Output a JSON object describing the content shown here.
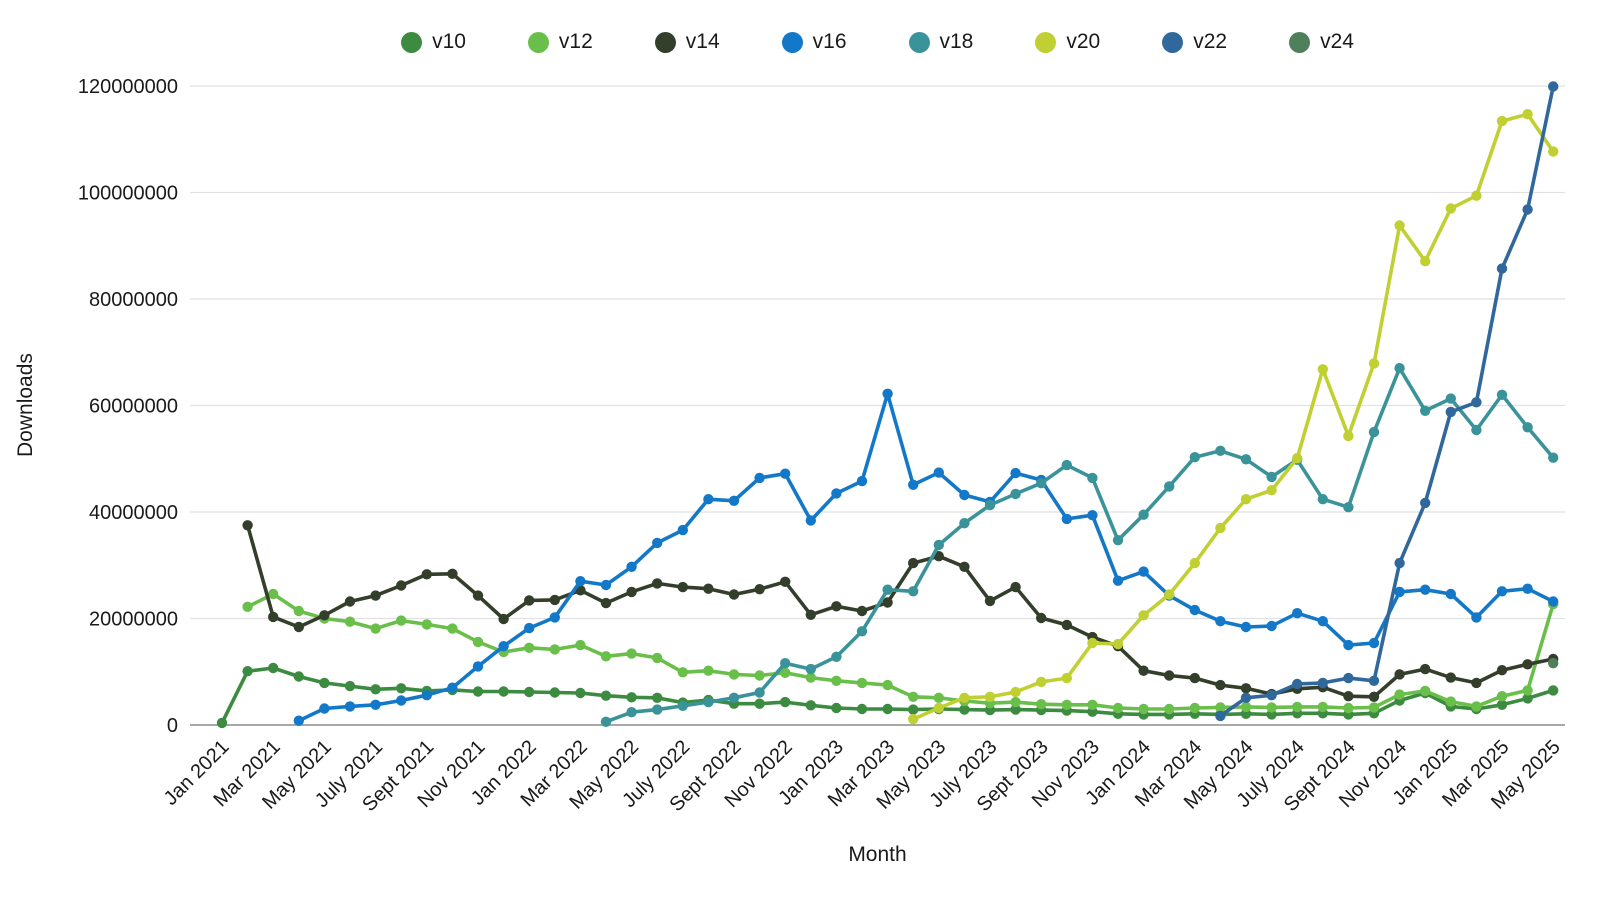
{
  "chart_data": {
    "type": "line",
    "title": "",
    "xlabel": "Month",
    "ylabel": "Downloads",
    "legend_position": "top",
    "grid": "horizontal",
    "ylim": [
      0,
      120000000
    ],
    "value_scale": 1000000,
    "y_ticks": [
      0,
      20000000,
      40000000,
      60000000,
      80000000,
      100000000,
      120000000
    ],
    "x_tick_step": 2,
    "x_tick_labels": [
      "Jan 2021",
      "Mar 2021",
      "May 2021",
      "July 2021",
      "Sept 2021",
      "Nov 2021",
      "Jan 2022",
      "Mar 2022",
      "May 2022",
      "July 2022",
      "Sept 2022",
      "Nov 2022",
      "Jan 2023",
      "Mar 2023",
      "May 2023",
      "July 2023",
      "Sept 2023",
      "Nov 2023",
      "Jan 2024",
      "Mar 2024",
      "May 2024",
      "July 2024",
      "Sept 2024",
      "Nov 2024",
      "Jan 2025",
      "Mar 2025",
      "May 2025"
    ],
    "months": [
      "Jan 2021",
      "Feb 2021",
      "Mar 2021",
      "Apr 2021",
      "May 2021",
      "Jun 2021",
      "July 2021",
      "Aug 2021",
      "Sept 2021",
      "Oct 2021",
      "Nov 2021",
      "Dec 2021",
      "Jan 2022",
      "Feb 2022",
      "Mar 2022",
      "Apr 2022",
      "May 2022",
      "Jun 2022",
      "July 2022",
      "Aug 2022",
      "Sept 2022",
      "Oct 2022",
      "Nov 2022",
      "Dec 2022",
      "Jan 2023",
      "Feb 2023",
      "Mar 2023",
      "Apr 2023",
      "May 2023",
      "Jun 2023",
      "July 2023",
      "Aug 2023",
      "Sept 2023",
      "Oct 2023",
      "Nov 2023",
      "Dec 2023",
      "Jan 2024",
      "Feb 2024",
      "Mar 2024",
      "Apr 2024",
      "May 2024",
      "Jun 2024",
      "July 2024",
      "Aug 2024",
      "Sept 2024",
      "Oct 2024",
      "Nov 2024",
      "Dec 2024",
      "Jan 2025",
      "Feb 2025",
      "Mar 2025",
      "Apr 2025",
      "May 2025"
    ],
    "values_unit": "millions of downloads",
    "series": [
      {
        "name": "v10",
        "color": "#3d8b40",
        "values": [
          0.4,
          10.1,
          10.7,
          9.1,
          7.9,
          7.3,
          6.7,
          6.9,
          6.4,
          6.6,
          6.3,
          6.3,
          6.2,
          6.1,
          6.0,
          5.5,
          5.2,
          5.1,
          4.2,
          4.7,
          4.0,
          4.0,
          4.3,
          3.7,
          3.2,
          3.0,
          3.0,
          2.9,
          3.0,
          2.9,
          2.8,
          2.9,
          2.8,
          2.7,
          2.5,
          2.1,
          2.0,
          2.0,
          2.1,
          2.0,
          2.1,
          2.0,
          2.2,
          2.2,
          2.0,
          2.2,
          4.6,
          6.0,
          3.5,
          3.0,
          3.8,
          5.0,
          6.5
        ]
      },
      {
        "name": "v12",
        "color": "#6abf4b",
        "values": [
          null,
          22.2,
          24.6,
          21.4,
          20.0,
          19.4,
          18.1,
          19.6,
          18.9,
          18.1,
          15.6,
          13.7,
          14.5,
          14.2,
          15.0,
          12.9,
          13.4,
          12.6,
          9.9,
          10.2,
          9.5,
          9.3,
          9.8,
          8.9,
          8.3,
          7.9,
          7.5,
          5.3,
          5.1,
          4.5,
          4.1,
          4.3,
          3.9,
          3.8,
          3.8,
          3.2,
          3.0,
          3.0,
          3.2,
          3.3,
          3.4,
          3.3,
          3.4,
          3.4,
          3.2,
          3.3,
          5.7,
          6.4,
          4.4,
          3.5,
          5.4,
          6.5,
          22.7
        ]
      },
      {
        "name": "v14",
        "color": "#333f2b",
        "values": [
          null,
          37.5,
          20.3,
          18.4,
          20.6,
          23.2,
          24.3,
          26.2,
          28.3,
          28.4,
          24.3,
          19.9,
          23.4,
          23.5,
          25.3,
          22.9,
          25.0,
          26.6,
          25.9,
          25.6,
          24.5,
          25.5,
          26.9,
          20.7,
          22.3,
          21.4,
          23.0,
          30.4,
          31.7,
          29.7,
          23.3,
          25.9,
          20.1,
          18.8,
          16.5,
          14.8,
          10.2,
          9.3,
          8.8,
          7.5,
          6.9,
          5.8,
          6.8,
          7.1,
          5.4,
          5.3,
          9.5,
          10.5,
          8.9,
          7.9,
          10.3,
          11.4,
          12.4
        ]
      },
      {
        "name": "v16",
        "color": "#1478c8",
        "values": [
          null,
          null,
          null,
          0.8,
          3.1,
          3.5,
          3.8,
          4.6,
          5.6,
          7.0,
          11.0,
          14.8,
          18.2,
          20.2,
          27.0,
          26.3,
          29.7,
          34.2,
          36.6,
          42.4,
          42.1,
          46.4,
          47.2,
          38.4,
          43.5,
          45.8,
          62.2,
          45.1,
          47.4,
          43.2,
          41.9,
          47.3,
          46.0,
          38.7,
          39.4,
          27.1,
          28.8,
          24.3,
          21.6,
          19.5,
          18.4,
          18.6,
          21.0,
          19.5,
          15.0,
          15.4,
          25.0,
          25.4,
          24.6,
          20.2,
          25.1,
          25.6,
          23.2
        ]
      },
      {
        "name": "v18",
        "color": "#3b939a",
        "values": [
          null,
          null,
          null,
          null,
          null,
          null,
          null,
          null,
          null,
          null,
          null,
          null,
          null,
          null,
          null,
          0.6,
          2.4,
          2.9,
          3.6,
          4.3,
          5.1,
          6.1,
          11.6,
          10.5,
          12.8,
          17.6,
          25.4,
          25.1,
          33.8,
          37.9,
          41.3,
          43.4,
          45.4,
          48.8,
          46.4,
          34.7,
          39.5,
          44.8,
          50.3,
          51.5,
          49.9,
          46.6,
          49.8,
          42.4,
          40.9,
          55.0,
          67.0,
          59.0,
          61.3,
          55.4,
          62.0,
          55.9,
          50.2
        ]
      },
      {
        "name": "v20",
        "color": "#c0d032",
        "values": [
          null,
          null,
          null,
          null,
          null,
          null,
          null,
          null,
          null,
          null,
          null,
          null,
          null,
          null,
          null,
          null,
          null,
          null,
          null,
          null,
          null,
          null,
          null,
          null,
          null,
          null,
          null,
          1.1,
          3.2,
          5.1,
          5.3,
          6.2,
          8.1,
          8.8,
          15.4,
          15.2,
          20.6,
          24.5,
          30.4,
          37.0,
          42.4,
          44.1,
          50.1,
          66.8,
          54.3,
          67.9,
          93.8,
          87.1,
          97.0,
          99.4,
          113.4,
          114.7,
          107.7
        ]
      },
      {
        "name": "v22",
        "color": "#31689b",
        "values": [
          null,
          null,
          null,
          null,
          null,
          null,
          null,
          null,
          null,
          null,
          null,
          null,
          null,
          null,
          null,
          null,
          null,
          null,
          null,
          null,
          null,
          null,
          null,
          null,
          null,
          null,
          null,
          null,
          null,
          null,
          null,
          null,
          null,
          null,
          null,
          null,
          null,
          null,
          null,
          1.7,
          5.1,
          5.6,
          7.7,
          7.9,
          8.8,
          8.3,
          30.4,
          41.7,
          58.8,
          60.6,
          85.7,
          96.8,
          119.9
        ]
      },
      {
        "name": "v24",
        "color": "#4f7f5b",
        "values": [
          null,
          null,
          null,
          null,
          null,
          null,
          null,
          null,
          null,
          null,
          null,
          null,
          null,
          null,
          null,
          null,
          null,
          null,
          null,
          null,
          null,
          null,
          null,
          null,
          null,
          null,
          null,
          null,
          null,
          null,
          null,
          null,
          null,
          null,
          null,
          null,
          null,
          null,
          null,
          null,
          null,
          null,
          null,
          null,
          null,
          null,
          null,
          null,
          null,
          null,
          null,
          null,
          11.6
        ]
      }
    ]
  }
}
